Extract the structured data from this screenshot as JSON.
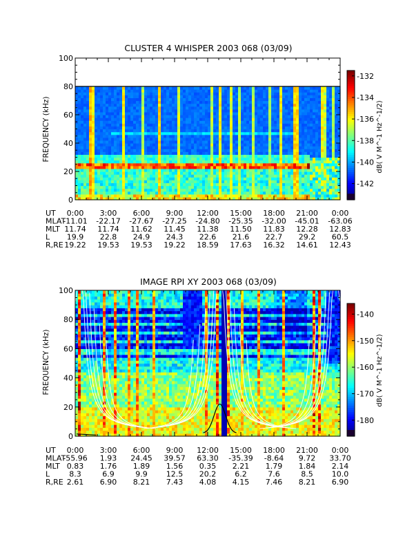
{
  "chart_data": [
    {
      "type": "heatmap",
      "title": "CLUSTER 4 WHISPER 2003 068 (03/09)",
      "ylabel": "FREQUENCY (kHz)",
      "ylim": [
        0,
        100
      ],
      "yticks": [
        "0",
        "20",
        "40",
        "60",
        "80",
        "100"
      ],
      "data_ylim": [
        0,
        80
      ],
      "colorbar": {
        "label": "dB( V M^-1 Hz^-1/2)",
        "range": [
          -143.5,
          -131.5
        ],
        "ticks": [
          "-132",
          "-134",
          "-136",
          "-138",
          "-140",
          "-142"
        ],
        "tick_values": [
          -132,
          -134,
          -136,
          -138,
          -140,
          -142
        ]
      },
      "emission_band_khz": 24,
      "ephemeris": {
        "rows": [
          "UT",
          "MLAT",
          "MLT",
          "L",
          "R,RE"
        ],
        "UT": [
          "0:00",
          "3:00",
          "6:00",
          "9:00",
          "12:00",
          "15:00",
          "18:00",
          "21:00",
          "0:00"
        ],
        "MLAT": [
          "-11.01",
          "-22.17",
          "-27.67",
          "-27.25",
          "-24.80",
          "-25.35",
          "-32.00",
          "-45.01",
          "-63.06"
        ],
        "MLT": [
          "11.74",
          "11.74",
          "11.62",
          "11.45",
          "11.38",
          "11.50",
          "11.83",
          "12.28",
          "12.83"
        ],
        "L": [
          "19.9",
          "22.8",
          "24.9",
          "24.3",
          "22.6",
          "21.6",
          "22.7",
          "29.2",
          "60.5"
        ],
        "R,RE": [
          "19.22",
          "19.53",
          "19.53",
          "19.22",
          "18.59",
          "17.63",
          "16.32",
          "14.61",
          "12.43"
        ]
      }
    },
    {
      "type": "heatmap",
      "title": "IMAGE RPI XY 2003 068 (03/09)",
      "ylabel": "FREQUENCY (kHz)",
      "ylim": [
        0,
        100
      ],
      "yticks": [
        "0",
        "20",
        "40",
        "60",
        "80",
        "100"
      ],
      "colorbar": {
        "label": "dB( V M^-1 Hz^-1/2)",
        "range": [
          -186,
          -136
        ],
        "ticks": [
          "-140",
          "-150",
          "-160",
          "-170",
          "-180"
        ],
        "tick_values": [
          -140,
          -150,
          -160,
          -170,
          -180
        ]
      },
      "ephemeris": {
        "rows": [
          "UT",
          "MLAT",
          "MLT",
          "L",
          "R,RE"
        ],
        "UT": [
          "0:00",
          "3:00",
          "6:00",
          "9:00",
          "12:00",
          "15:00",
          "18:00",
          "21:00",
          "0:00"
        ],
        "MLAT": [
          "-55.96",
          "1.93",
          "24.45",
          "39.57",
          "63.30",
          "-35.39",
          "-8.64",
          "9.72",
          "33.70"
        ],
        "MLT": [
          "0.83",
          "1.76",
          "1.89",
          "1.56",
          "0.35",
          "2.21",
          "1.79",
          "1.84",
          "2.14"
        ],
        "L": [
          "8.3",
          "6.9",
          "9.9",
          "12.5",
          "20.2",
          "6.2",
          "7.6",
          "8.5",
          "10.0"
        ],
        "R,RE": [
          "2.61",
          "6.90",
          "8.21",
          "7.43",
          "4.08",
          "4.15",
          "7.46",
          "8.21",
          "6.90"
        ]
      }
    }
  ]
}
